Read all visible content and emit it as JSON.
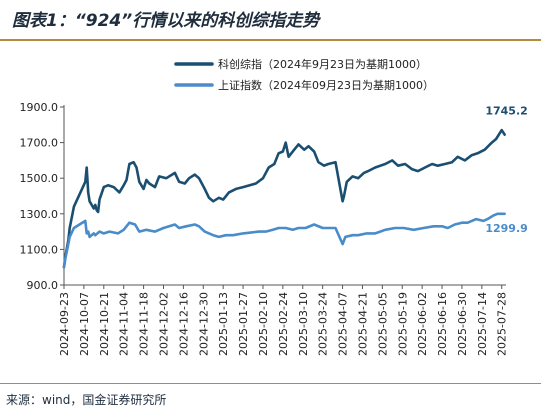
{
  "header": {
    "title": "图表1：“924”行情以来的科创综指走势"
  },
  "footer": {
    "source": "来源：wind，国金证券研究所"
  },
  "chart_data": {
    "type": "line",
    "title": "",
    "xlabel": "",
    "ylabel": "",
    "ylim": [
      900,
      1900
    ],
    "yticks": [
      900,
      1100,
      1300,
      1500,
      1700,
      1900
    ],
    "ytick_labels": [
      "900.0",
      "1100.0",
      "1300.0",
      "1500.0",
      "1700.0",
      "1900.0"
    ],
    "x_range": [
      "2024-09-23",
      "2025-07-31"
    ],
    "xticks": [
      "2024-09-23",
      "2024-10-07",
      "2024-10-21",
      "2024-11-04",
      "2024-11-18",
      "2024-12-02",
      "2024-12-16",
      "2024-12-30",
      "2025-01-13",
      "2025-01-27",
      "2025-02-10",
      "2025-02-24",
      "2025-03-10",
      "2025-03-24",
      "2025-04-07",
      "2025-04-21",
      "2025-05-05",
      "2025-05-19",
      "2025-06-02",
      "2025-06-16",
      "2025-06-30",
      "2025-07-14",
      "2025-07-28"
    ],
    "legend": {
      "placement": "top-center"
    },
    "grid": false,
    "colors": {
      "series1": "#1b4f72",
      "series2": "#4a8cc9"
    },
    "series": [
      {
        "name": "科创综指（2024年9月23日为基期1000）",
        "color": "#1b4f72",
        "end_label": "1745.2",
        "points": [
          [
            "2024-09-23",
            1000
          ],
          [
            "2024-09-24",
            1060
          ],
          [
            "2024-09-26",
            1150
          ],
          [
            "2024-09-27",
            1220
          ],
          [
            "2024-09-30",
            1340
          ],
          [
            "2024-10-08",
            1480
          ],
          [
            "2024-10-09",
            1560
          ],
          [
            "2024-10-10",
            1420
          ],
          [
            "2024-10-11",
            1370
          ],
          [
            "2024-10-14",
            1330
          ],
          [
            "2024-10-15",
            1350
          ],
          [
            "2024-10-16",
            1320
          ],
          [
            "2024-10-17",
            1310
          ],
          [
            "2024-10-18",
            1380
          ],
          [
            "2024-10-21",
            1450
          ],
          [
            "2024-10-24",
            1460
          ],
          [
            "2024-10-28",
            1450
          ],
          [
            "2024-11-01",
            1420
          ],
          [
            "2024-11-04",
            1460
          ],
          [
            "2024-11-06",
            1490
          ],
          [
            "2024-11-08",
            1580
          ],
          [
            "2024-11-11",
            1590
          ],
          [
            "2024-11-13",
            1560
          ],
          [
            "2024-11-15",
            1480
          ],
          [
            "2024-11-18",
            1440
          ],
          [
            "2024-11-20",
            1490
          ],
          [
            "2024-11-22",
            1470
          ],
          [
            "2024-11-26",
            1450
          ],
          [
            "2024-11-29",
            1510
          ],
          [
            "2024-12-04",
            1500
          ],
          [
            "2024-12-10",
            1530
          ],
          [
            "2024-12-13",
            1480
          ],
          [
            "2024-12-17",
            1470
          ],
          [
            "2024-12-20",
            1500
          ],
          [
            "2024-12-24",
            1520
          ],
          [
            "2024-12-27",
            1500
          ],
          [
            "2024-12-31",
            1440
          ],
          [
            "2025-01-03",
            1390
          ],
          [
            "2025-01-06",
            1370
          ],
          [
            "2025-01-10",
            1390
          ],
          [
            "2025-01-13",
            1380
          ],
          [
            "2025-01-17",
            1420
          ],
          [
            "2025-01-22",
            1440
          ],
          [
            "2025-01-27",
            1450
          ],
          [
            "2025-02-05",
            1470
          ],
          [
            "2025-02-10",
            1500
          ],
          [
            "2025-02-14",
            1560
          ],
          [
            "2025-02-18",
            1580
          ],
          [
            "2025-02-21",
            1640
          ],
          [
            "2025-02-24",
            1650
          ],
          [
            "2025-02-26",
            1700
          ],
          [
            "2025-02-28",
            1620
          ],
          [
            "2025-03-04",
            1660
          ],
          [
            "2025-03-07",
            1690
          ],
          [
            "2025-03-11",
            1660
          ],
          [
            "2025-03-14",
            1680
          ],
          [
            "2025-03-18",
            1650
          ],
          [
            "2025-03-21",
            1590
          ],
          [
            "2025-03-25",
            1570
          ],
          [
            "2025-03-28",
            1580
          ],
          [
            "2025-04-02",
            1590
          ],
          [
            "2025-04-07",
            1370
          ],
          [
            "2025-04-08",
            1400
          ],
          [
            "2025-04-10",
            1480
          ],
          [
            "2025-04-14",
            1510
          ],
          [
            "2025-04-18",
            1500
          ],
          [
            "2025-04-22",
            1530
          ],
          [
            "2025-04-25",
            1540
          ],
          [
            "2025-04-30",
            1560
          ],
          [
            "2025-05-07",
            1580
          ],
          [
            "2025-05-12",
            1600
          ],
          [
            "2025-05-16",
            1570
          ],
          [
            "2025-05-21",
            1580
          ],
          [
            "2025-05-26",
            1550
          ],
          [
            "2025-05-30",
            1540
          ],
          [
            "2025-06-04",
            1560
          ],
          [
            "2025-06-09",
            1580
          ],
          [
            "2025-06-13",
            1570
          ],
          [
            "2025-06-18",
            1580
          ],
          [
            "2025-06-23",
            1590
          ],
          [
            "2025-06-27",
            1620
          ],
          [
            "2025-07-02",
            1600
          ],
          [
            "2025-07-07",
            1630
          ],
          [
            "2025-07-11",
            1640
          ],
          [
            "2025-07-16",
            1660
          ],
          [
            "2025-07-21",
            1700
          ],
          [
            "2025-07-24",
            1720
          ],
          [
            "2025-07-28",
            1770
          ],
          [
            "2025-07-30",
            1745.2
          ]
        ]
      },
      {
        "name": "上证指数（2024年09月23日为基期1000）",
        "color": "#4a8cc9",
        "end_label": "1299.9",
        "points": [
          [
            "2024-09-23",
            1000
          ],
          [
            "2024-09-24",
            1050
          ],
          [
            "2024-09-26",
            1130
          ],
          [
            "2024-09-27",
            1170
          ],
          [
            "2024-09-30",
            1220
          ],
          [
            "2024-10-08",
            1260
          ],
          [
            "2024-10-09",
            1190
          ],
          [
            "2024-10-10",
            1200
          ],
          [
            "2024-10-11",
            1170
          ],
          [
            "2024-10-14",
            1190
          ],
          [
            "2024-10-15",
            1180
          ],
          [
            "2024-10-18",
            1200
          ],
          [
            "2024-10-21",
            1190
          ],
          [
            "2024-10-25",
            1200
          ],
          [
            "2024-10-31",
            1190
          ],
          [
            "2024-11-04",
            1210
          ],
          [
            "2024-11-08",
            1250
          ],
          [
            "2024-11-12",
            1240
          ],
          [
            "2024-11-15",
            1200
          ],
          [
            "2024-11-20",
            1210
          ],
          [
            "2024-11-26",
            1200
          ],
          [
            "2024-12-02",
            1220
          ],
          [
            "2024-12-06",
            1230
          ],
          [
            "2024-12-10",
            1240
          ],
          [
            "2024-12-13",
            1220
          ],
          [
            "2024-12-18",
            1230
          ],
          [
            "2024-12-24",
            1240
          ],
          [
            "2024-12-27",
            1230
          ],
          [
            "2024-12-31",
            1200
          ],
          [
            "2025-01-06",
            1180
          ],
          [
            "2025-01-10",
            1170
          ],
          [
            "2025-01-15",
            1180
          ],
          [
            "2025-01-20",
            1180
          ],
          [
            "2025-01-27",
            1190
          ],
          [
            "2025-02-07",
            1200
          ],
          [
            "2025-02-12",
            1200
          ],
          [
            "2025-02-17",
            1210
          ],
          [
            "2025-02-21",
            1220
          ],
          [
            "2025-02-26",
            1220
          ],
          [
            "2025-03-03",
            1210
          ],
          [
            "2025-03-07",
            1220
          ],
          [
            "2025-03-12",
            1220
          ],
          [
            "2025-03-18",
            1240
          ],
          [
            "2025-03-24",
            1220
          ],
          [
            "2025-03-28",
            1220
          ],
          [
            "2025-04-02",
            1220
          ],
          [
            "2025-04-07",
            1130
          ],
          [
            "2025-04-09",
            1170
          ],
          [
            "2025-04-14",
            1180
          ],
          [
            "2025-04-18",
            1180
          ],
          [
            "2025-04-24",
            1190
          ],
          [
            "2025-04-30",
            1190
          ],
          [
            "2025-05-07",
            1210
          ],
          [
            "2025-05-14",
            1220
          ],
          [
            "2025-05-20",
            1220
          ],
          [
            "2025-05-27",
            1210
          ],
          [
            "2025-06-03",
            1220
          ],
          [
            "2025-06-10",
            1230
          ],
          [
            "2025-06-16",
            1230
          ],
          [
            "2025-06-20",
            1220
          ],
          [
            "2025-06-25",
            1240
          ],
          [
            "2025-06-30",
            1250
          ],
          [
            "2025-07-04",
            1250
          ],
          [
            "2025-07-10",
            1270
          ],
          [
            "2025-07-15",
            1260
          ],
          [
            "2025-07-18",
            1270
          ],
          [
            "2025-07-22",
            1290
          ],
          [
            "2025-07-25",
            1300
          ],
          [
            "2025-07-28",
            1300
          ],
          [
            "2025-07-30",
            1299.9
          ]
        ]
      }
    ]
  }
}
